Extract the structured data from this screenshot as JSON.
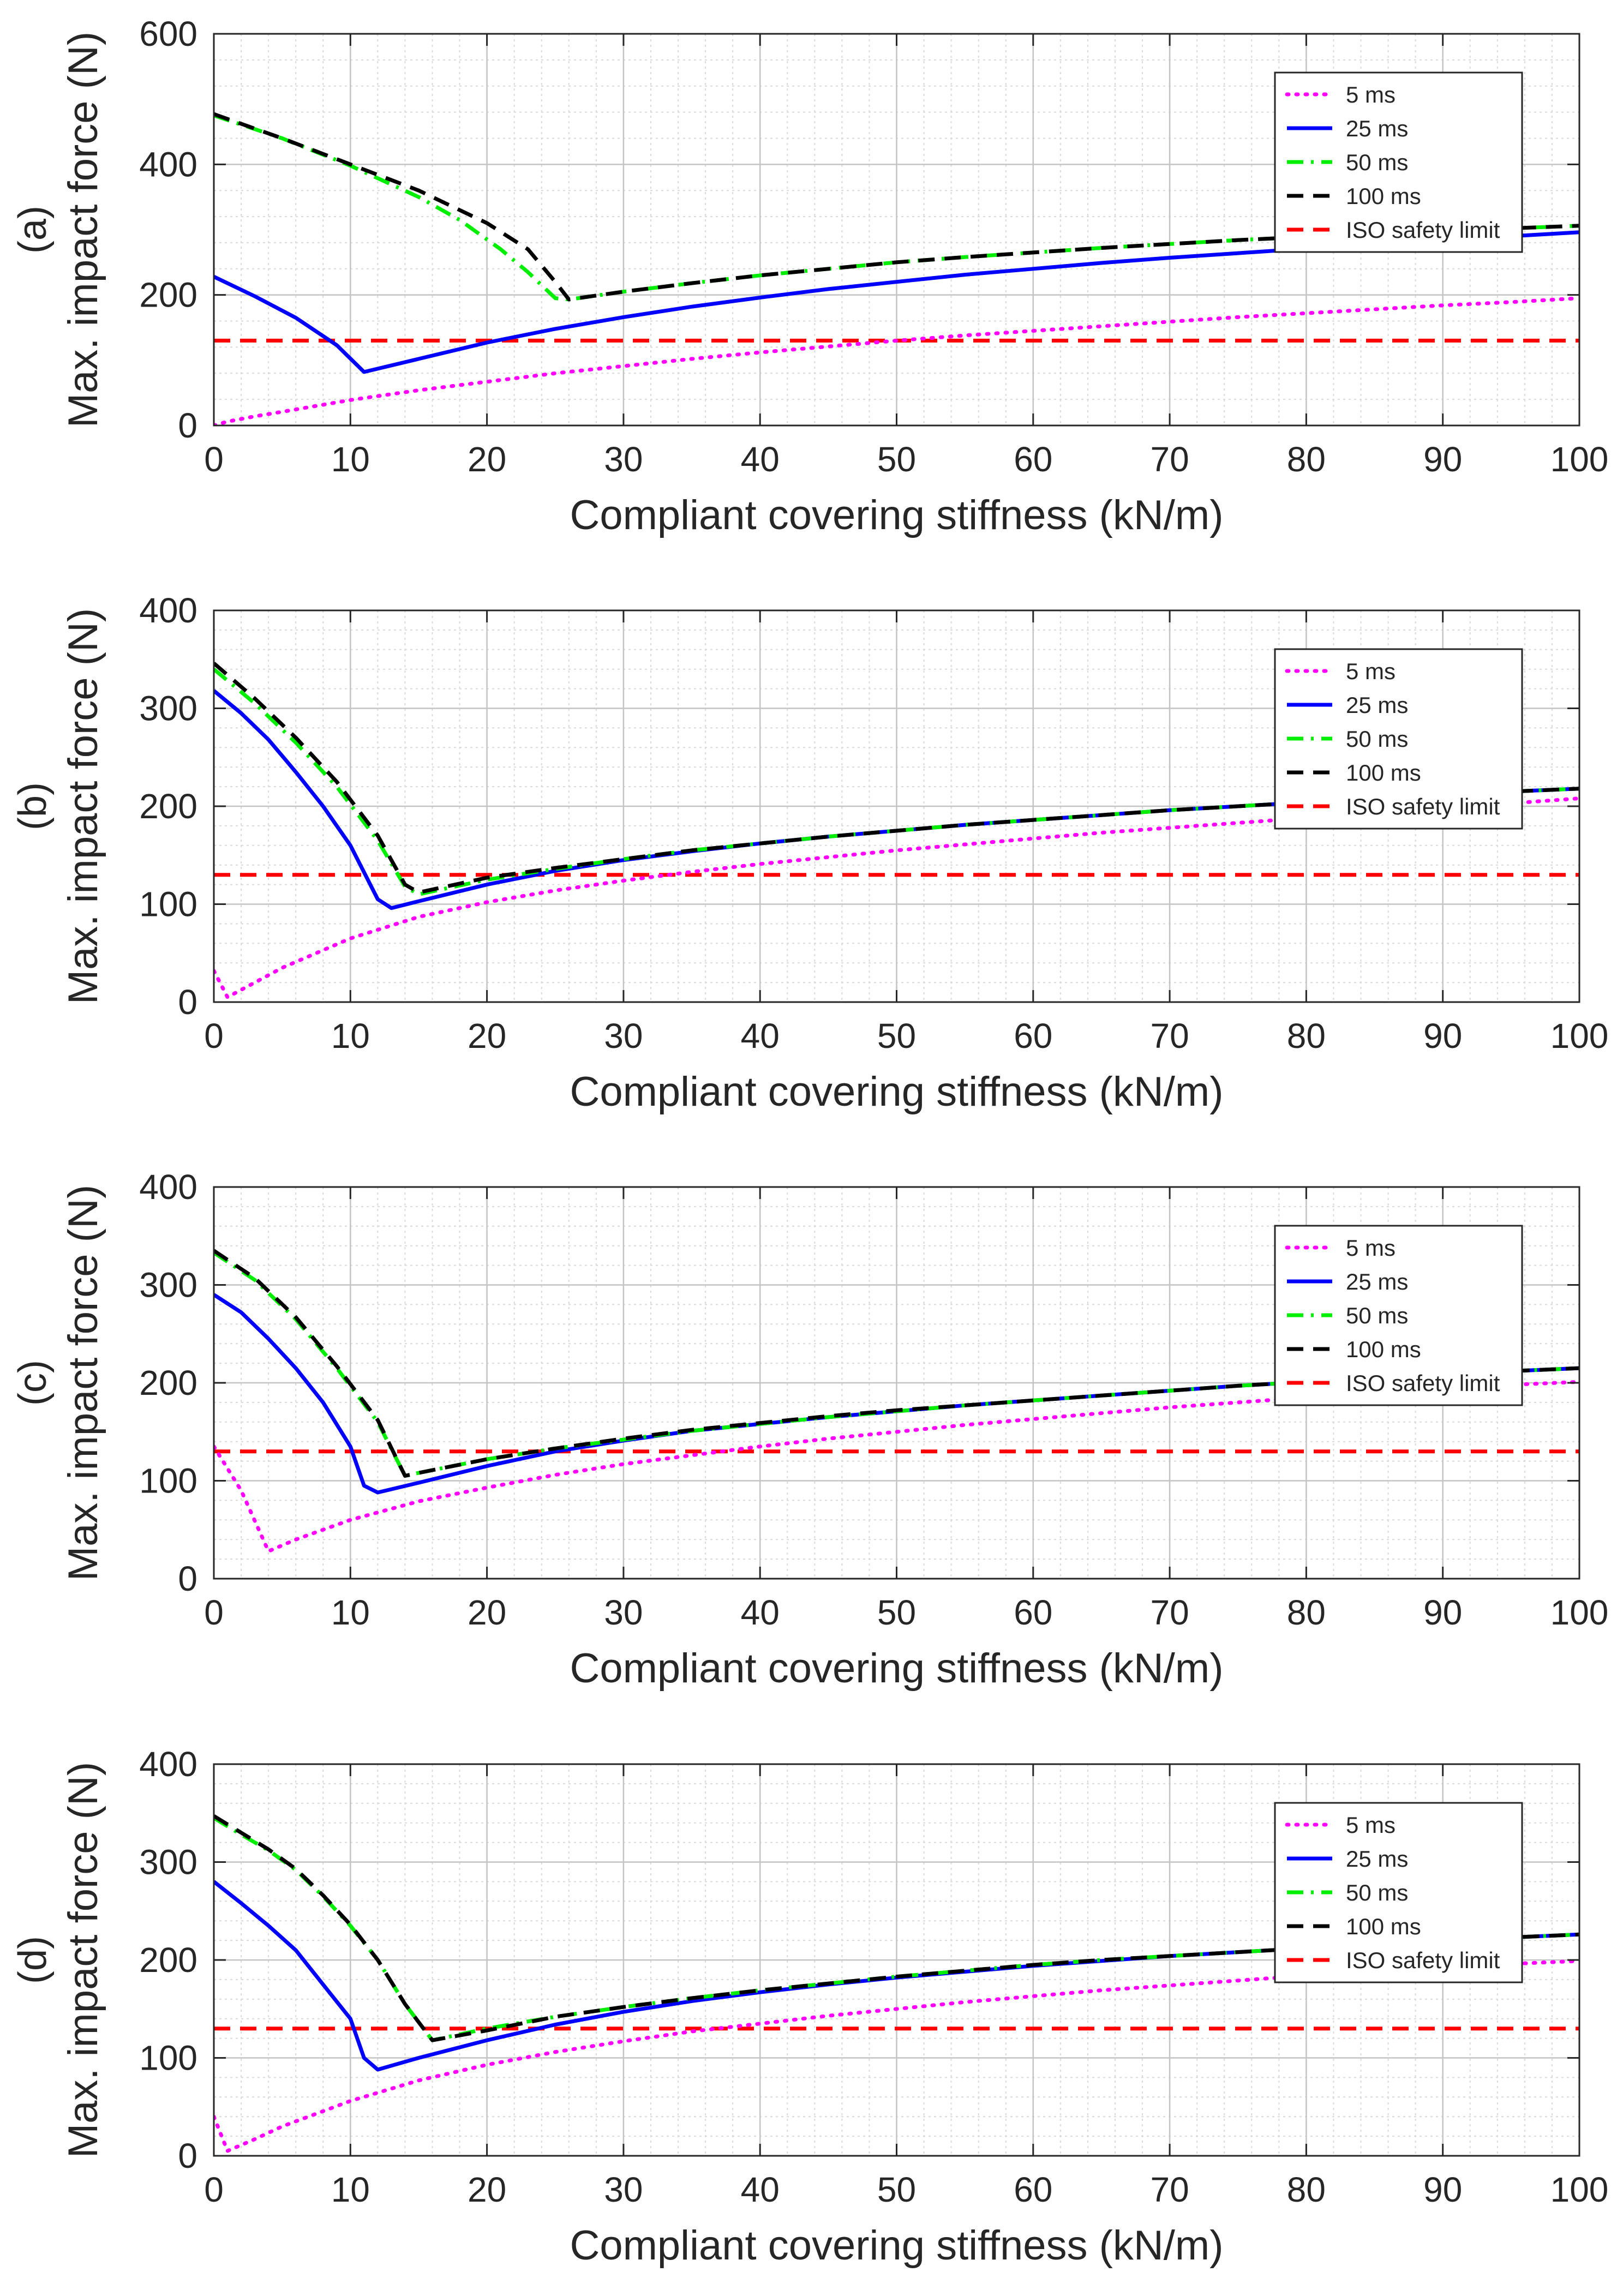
{
  "chart_data": [
    {
      "type": "line",
      "panel_label": "(a)",
      "xlabel": "Compliant covering stiffness (kN/m)",
      "ylabel": "Max. impact force (N)",
      "xlim": [
        0,
        100
      ],
      "ylim": [
        0,
        600
      ],
      "xticks": [
        0,
        10,
        20,
        30,
        40,
        50,
        60,
        70,
        80,
        90,
        100
      ],
      "yticks": [
        0,
        200,
        400,
        600
      ],
      "grid": true,
      "legend_position": "top-right",
      "series": [
        {
          "name": "5 ms",
          "color": "#ff00ff",
          "style": "dotted",
          "x": [
            0,
            1,
            2,
            3,
            5,
            7.5,
            10,
            15,
            20,
            25,
            30,
            35,
            40,
            45,
            50,
            55,
            60,
            65,
            70,
            75,
            80,
            85,
            90,
            95,
            100
          ],
          "y": [
            0,
            6,
            10,
            14,
            21,
            30,
            39,
            54,
            67,
            80,
            91,
            102,
            112,
            121,
            130,
            138,
            145,
            152,
            159,
            166,
            172,
            178,
            184,
            189,
            195
          ]
        },
        {
          "name": "25 ms",
          "color": "#0000ff",
          "style": "solid",
          "x": [
            0,
            3,
            6,
            9,
            11,
            15,
            20,
            25,
            30,
            35,
            40,
            45,
            50,
            55,
            60,
            65,
            70,
            75,
            80,
            85,
            90,
            95,
            100
          ],
          "y": [
            228,
            198,
            165,
            123,
            82,
            102,
            127,
            148,
            166,
            182,
            196,
            209,
            220,
            231,
            240,
            249,
            257,
            264,
            271,
            278,
            284,
            290,
            296
          ]
        },
        {
          "name": "50 ms",
          "color": "#00ee00",
          "style": "dashdot",
          "x": [
            0,
            5,
            10,
            15,
            18,
            21,
            23,
            25,
            26,
            30,
            35,
            40,
            45,
            50,
            55,
            60,
            65,
            70,
            75,
            80,
            85,
            90,
            95,
            100
          ],
          "y": [
            475,
            440,
            398,
            350,
            315,
            270,
            235,
            195,
            193,
            205,
            218,
            230,
            240,
            250,
            258,
            265,
            272,
            278,
            284,
            289,
            294,
            298,
            302,
            306
          ]
        },
        {
          "name": "100 ms",
          "color": "#000000",
          "style": "dashed",
          "x": [
            0,
            5,
            10,
            15,
            20,
            23,
            25,
            26,
            30,
            35,
            40,
            45,
            50,
            55,
            60,
            65,
            70,
            75,
            80,
            85,
            90,
            95,
            100
          ],
          "y": [
            477,
            440,
            400,
            360,
            310,
            270,
            220,
            193,
            205,
            218,
            230,
            240,
            250,
            258,
            265,
            272,
            278,
            284,
            289,
            294,
            298,
            302,
            306
          ]
        },
        {
          "name": "ISO safety limit",
          "color": "#ff0000",
          "style": "dashed",
          "x": [
            0,
            100
          ],
          "y": [
            130,
            130
          ]
        }
      ]
    },
    {
      "type": "line",
      "panel_label": "(b)",
      "xlabel": "Compliant covering stiffness (kN/m)",
      "ylabel": "Max. impact force (N)",
      "xlim": [
        0,
        100
      ],
      "ylim": [
        0,
        400
      ],
      "xticks": [
        0,
        10,
        20,
        30,
        40,
        50,
        60,
        70,
        80,
        90,
        100
      ],
      "yticks": [
        0,
        100,
        200,
        300,
        400
      ],
      "grid": true,
      "legend_position": "top-right",
      "series": [
        {
          "name": "5 ms",
          "color": "#ff00ff",
          "style": "dotted",
          "x": [
            0,
            1,
            3,
            5,
            10,
            15,
            20,
            25,
            30,
            35,
            40,
            45,
            50,
            55,
            60,
            65,
            70,
            75,
            80,
            85,
            90,
            95,
            100
          ],
          "y": [
            32,
            5,
            20,
            35,
            65,
            87,
            102,
            114,
            124,
            133,
            141,
            148,
            155,
            161,
            167,
            173,
            178,
            183,
            188,
            193,
            198,
            203,
            208
          ]
        },
        {
          "name": "25 ms",
          "color": "#0000ff",
          "style": "solid",
          "x": [
            0,
            2,
            4,
            6,
            8,
            10,
            12,
            13,
            15,
            20,
            25,
            30,
            35,
            40,
            45,
            50,
            55,
            60,
            65,
            70,
            75,
            80,
            85,
            90,
            95,
            100
          ],
          "y": [
            318,
            295,
            268,
            235,
            200,
            160,
            105,
            96,
            103,
            120,
            134,
            145,
            154,
            162,
            169,
            175,
            181,
            186,
            191,
            196,
            200,
            204,
            208,
            212,
            215,
            218
          ]
        },
        {
          "name": "50 ms",
          "color": "#00ee00",
          "style": "dashdot",
          "x": [
            0,
            3,
            6,
            9,
            12,
            14,
            15,
            20,
            25,
            30,
            35,
            40,
            45,
            50,
            55,
            60,
            65,
            70,
            75,
            80,
            85,
            90,
            95,
            100
          ],
          "y": [
            340,
            305,
            265,
            220,
            165,
            118,
            110,
            125,
            136,
            146,
            155,
            162,
            169,
            175,
            181,
            186,
            191,
            196,
            200,
            204,
            208,
            212,
            215,
            218
          ]
        },
        {
          "name": "100 ms",
          "color": "#000000",
          "style": "dashed",
          "x": [
            0,
            3,
            6,
            9,
            12,
            14,
            15,
            20,
            25,
            30,
            35,
            40,
            45,
            50,
            55,
            60,
            65,
            70,
            75,
            80,
            85,
            90,
            95,
            100
          ],
          "y": [
            346,
            310,
            270,
            225,
            170,
            120,
            112,
            127,
            137,
            146,
            155,
            162,
            169,
            175,
            181,
            186,
            191,
            196,
            200,
            204,
            208,
            212,
            215,
            218
          ]
        },
        {
          "name": "ISO safety limit",
          "color": "#ff0000",
          "style": "dashed",
          "x": [
            0,
            100
          ],
          "y": [
            130,
            130
          ]
        }
      ]
    },
    {
      "type": "line",
      "panel_label": "(c)",
      "xlabel": "Compliant covering stiffness (kN/m)",
      "ylabel": "Max. impact force (N)",
      "xlim": [
        0,
        100
      ],
      "ylim": [
        0,
        400
      ],
      "xticks": [
        0,
        10,
        20,
        30,
        40,
        50,
        60,
        70,
        80,
        90,
        100
      ],
      "yticks": [
        0,
        100,
        200,
        300,
        400
      ],
      "grid": true,
      "legend_position": "top-right",
      "series": [
        {
          "name": "5 ms",
          "color": "#ff00ff",
          "style": "dotted",
          "x": [
            0,
            2,
            4,
            6,
            10,
            15,
            20,
            25,
            30,
            35,
            40,
            45,
            50,
            55,
            60,
            65,
            70,
            75,
            80,
            85,
            90,
            95,
            100
          ],
          "y": [
            135,
            90,
            28,
            40,
            60,
            79,
            93,
            106,
            117,
            126,
            135,
            143,
            150,
            157,
            163,
            169,
            175,
            180,
            185,
            190,
            194,
            198,
            201
          ]
        },
        {
          "name": "25 ms",
          "color": "#0000ff",
          "style": "solid",
          "x": [
            0,
            2,
            4,
            6,
            8,
            10,
            11,
            12,
            15,
            20,
            25,
            30,
            35,
            40,
            45,
            50,
            55,
            60,
            65,
            70,
            75,
            80,
            85,
            90,
            95,
            100
          ],
          "y": [
            290,
            272,
            245,
            215,
            180,
            135,
            95,
            88,
            98,
            115,
            130,
            141,
            151,
            158,
            165,
            171,
            177,
            182,
            187,
            192,
            197,
            201,
            205,
            209,
            212,
            215
          ]
        },
        {
          "name": "50 ms",
          "color": "#00ee00",
          "style": "dashdot",
          "x": [
            0,
            3,
            6,
            9,
            12,
            14,
            15,
            20,
            25,
            30,
            35,
            40,
            45,
            50,
            55,
            60,
            65,
            70,
            75,
            80,
            85,
            90,
            95,
            100
          ],
          "y": [
            333,
            305,
            265,
            215,
            160,
            105,
            108,
            122,
            133,
            142,
            151,
            158,
            165,
            171,
            177,
            182,
            187,
            192,
            197,
            201,
            205,
            209,
            212,
            215
          ]
        },
        {
          "name": "100 ms",
          "color": "#000000",
          "style": "dashed",
          "x": [
            0,
            3,
            6,
            9,
            12,
            14,
            15,
            20,
            25,
            30,
            35,
            40,
            45,
            50,
            55,
            60,
            65,
            70,
            75,
            80,
            85,
            90,
            95,
            100
          ],
          "y": [
            335,
            307,
            267,
            217,
            162,
            105,
            108,
            122,
            133,
            143,
            152,
            159,
            166,
            172,
            177,
            182,
            187,
            192,
            197,
            201,
            205,
            209,
            212,
            215
          ]
        },
        {
          "name": "ISO safety limit",
          "color": "#ff0000",
          "style": "dashed",
          "x": [
            0,
            100
          ],
          "y": [
            130,
            130
          ]
        }
      ]
    },
    {
      "type": "line",
      "panel_label": "(d)",
      "xlabel": "Compliant covering stiffness (kN/m)",
      "ylabel": "Max. impact force (N)",
      "xlim": [
        0,
        100
      ],
      "ylim": [
        0,
        400
      ],
      "xticks": [
        0,
        10,
        20,
        30,
        40,
        50,
        60,
        70,
        80,
        90,
        100
      ],
      "yticks": [
        0,
        100,
        200,
        300,
        400
      ],
      "grid": true,
      "legend_position": "top-right",
      "series": [
        {
          "name": "5 ms",
          "color": "#ff00ff",
          "style": "dotted",
          "x": [
            0,
            1,
            3,
            5,
            10,
            15,
            20,
            25,
            30,
            35,
            40,
            45,
            50,
            55,
            60,
            65,
            70,
            75,
            80,
            85,
            90,
            95,
            100
          ],
          "y": [
            40,
            5,
            17,
            30,
            56,
            77,
            93,
            106,
            117,
            127,
            135,
            143,
            150,
            157,
            163,
            169,
            174,
            179,
            184,
            188,
            192,
            196,
            199
          ]
        },
        {
          "name": "25 ms",
          "color": "#0000ff",
          "style": "solid",
          "x": [
            0,
            2,
            4,
            6,
            8,
            10,
            11,
            12,
            15,
            20,
            25,
            30,
            35,
            40,
            45,
            50,
            55,
            60,
            65,
            70,
            75,
            80,
            85,
            90,
            95,
            100
          ],
          "y": [
            280,
            258,
            235,
            210,
            175,
            140,
            100,
            88,
            100,
            118,
            134,
            147,
            158,
            167,
            175,
            182,
            188,
            194,
            199,
            204,
            208,
            212,
            216,
            220,
            223,
            226
          ]
        },
        {
          "name": "50 ms",
          "color": "#00ee00",
          "style": "dashdot",
          "x": [
            0,
            2,
            4,
            6,
            8,
            10,
            12,
            14,
            16,
            20,
            25,
            30,
            35,
            40,
            45,
            50,
            55,
            60,
            65,
            70,
            75,
            80,
            85,
            90,
            95,
            100
          ],
          "y": [
            345,
            328,
            312,
            292,
            265,
            235,
            200,
            155,
            118,
            130,
            142,
            152,
            161,
            169,
            176,
            183,
            189,
            195,
            200,
            204,
            208,
            212,
            216,
            220,
            223,
            226
          ]
        },
        {
          "name": "100 ms",
          "color": "#000000",
          "style": "dashed",
          "x": [
            0,
            2,
            4,
            6,
            8,
            10,
            12,
            14,
            16,
            20,
            25,
            30,
            35,
            40,
            45,
            50,
            55,
            60,
            65,
            70,
            75,
            80,
            85,
            90,
            95,
            100
          ],
          "y": [
            347,
            330,
            313,
            293,
            266,
            236,
            200,
            155,
            118,
            128,
            142,
            152,
            161,
            169,
            176,
            183,
            189,
            195,
            200,
            204,
            208,
            212,
            216,
            220,
            223,
            226
          ]
        },
        {
          "name": "ISO safety limit",
          "color": "#ff0000",
          "style": "dashed",
          "x": [
            0,
            100
          ],
          "y": [
            130,
            130
          ]
        }
      ]
    }
  ]
}
